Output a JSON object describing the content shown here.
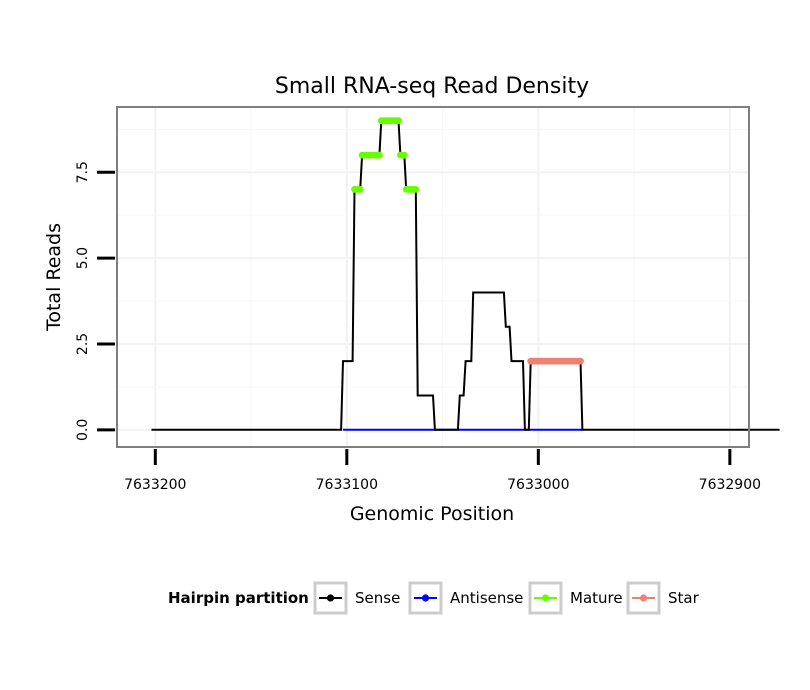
{
  "chart_data": {
    "type": "line",
    "title": "Small RNA-seq Read Density",
    "xlabel": "Genomic Position",
    "ylabel": "Total Reads",
    "x_reversed": true,
    "xlim": [
      7633220,
      7632890
    ],
    "ylim": [
      -0.5,
      9.4
    ],
    "x_ticks": [
      {
        "value": 7633200,
        "label": "7633200"
      },
      {
        "value": 7633100,
        "label": "7633100"
      },
      {
        "value": 7633000,
        "label": "7633000"
      },
      {
        "value": 7632900,
        "label": "7632900"
      }
    ],
    "y_ticks": [
      {
        "value": 0,
        "label": "0.0"
      },
      {
        "value": 2.5,
        "label": "2.5"
      },
      {
        "value": 5,
        "label": "5.0"
      },
      {
        "value": 7.5,
        "label": "7.5"
      }
    ],
    "grid": true,
    "legend": {
      "title": "Hairpin partition",
      "position": "bottom",
      "entries": [
        {
          "name": "Sense",
          "color": "#000000"
        },
        {
          "name": "Antisense",
          "color": "#0000ff"
        },
        {
          "name": "Mature",
          "color": "#66ff00"
        },
        {
          "name": "Star",
          "color": "#f08070"
        }
      ]
    },
    "series": [
      {
        "name": "Sense",
        "color": "#000000",
        "kind": "line",
        "points": [
          [
            7633202,
            0
          ],
          [
            7633103,
            0
          ],
          [
            7633102,
            2
          ],
          [
            7633097,
            2
          ],
          [
            7633096,
            7
          ],
          [
            7633093,
            7
          ],
          [
            7633092,
            8
          ],
          [
            7633083,
            8
          ],
          [
            7633082,
            9
          ],
          [
            7633073,
            9
          ],
          [
            7633072,
            8
          ],
          [
            7633070,
            8
          ],
          [
            7633069,
            7
          ],
          [
            7633064,
            7
          ],
          [
            7633063,
            1
          ],
          [
            7633055,
            1
          ],
          [
            7633054,
            0
          ],
          [
            7633042,
            0
          ],
          [
            7633041,
            1
          ],
          [
            7633039,
            1
          ],
          [
            7633038,
            2
          ],
          [
            7633035,
            2
          ],
          [
            7633034,
            4
          ],
          [
            7633018,
            4
          ],
          [
            7633017,
            3
          ],
          [
            7633015,
            3
          ],
          [
            7633014,
            2
          ],
          [
            7633008,
            2
          ],
          [
            7633007,
            0
          ],
          [
            7633005,
            0
          ],
          [
            7633004,
            2
          ],
          [
            7632978,
            2
          ],
          [
            7632977,
            0
          ],
          [
            7632874,
            0
          ]
        ]
      },
      {
        "name": "Antisense",
        "color": "#0000ff",
        "kind": "line",
        "points": [
          [
            7633102,
            0
          ],
          [
            7632977,
            0
          ]
        ]
      },
      {
        "name": "Mature",
        "color": "#66ff00",
        "kind": "dots",
        "segments": [
          {
            "from": 7633096,
            "to": 7633093,
            "y": 7
          },
          {
            "from": 7633092,
            "to": 7633083,
            "y": 8
          },
          {
            "from": 7633082,
            "to": 7633073,
            "y": 9
          },
          {
            "from": 7633072,
            "to": 7633070,
            "y": 8
          },
          {
            "from": 7633069,
            "to": 7633064,
            "y": 7
          }
        ]
      },
      {
        "name": "Star",
        "color": "#f08070",
        "kind": "dots",
        "segments": [
          {
            "from": 7633004,
            "to": 7632978,
            "y": 2
          }
        ]
      }
    ]
  }
}
